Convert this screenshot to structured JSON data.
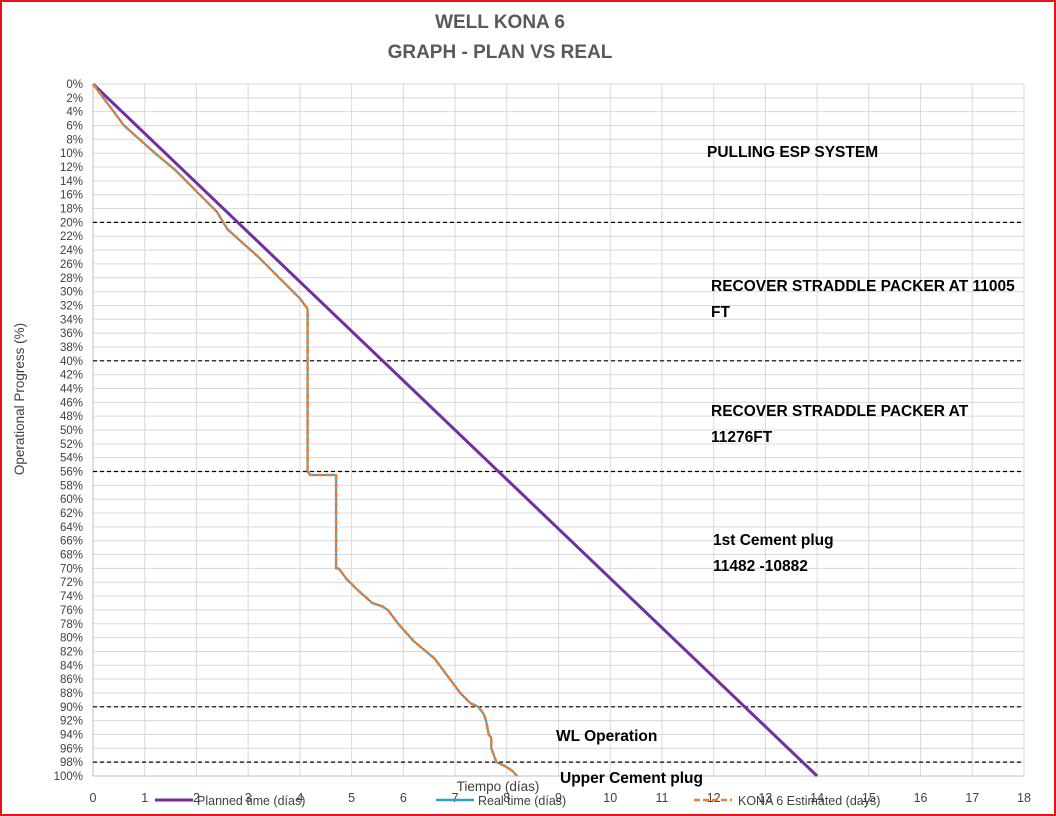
{
  "chart_data": {
    "type": "line",
    "title": "WELL KONA 6",
    "subtitle": "GRAPH  - PLAN VS REAL",
    "xlabel": "Tiempo (días)",
    "ylabel": "Operational Progress (%)",
    "xlim": [
      0,
      18
    ],
    "ylim": [
      0,
      100
    ],
    "y_inverted": true,
    "x_ticks": [
      "0",
      "1",
      "2",
      "3",
      "4",
      "5",
      "6",
      "7",
      "8",
      "9",
      "10",
      "11",
      "12",
      "13",
      "14",
      "15",
      "16",
      "17",
      "18"
    ],
    "y_ticks": [
      "0%",
      "2%",
      "4%",
      "6%",
      "8%",
      "10%",
      "12%",
      "14%",
      "16%",
      "18%",
      "20%",
      "22%",
      "24%",
      "26%",
      "28%",
      "30%",
      "32%",
      "34%",
      "36%",
      "38%",
      "40%",
      "42%",
      "44%",
      "46%",
      "48%",
      "50%",
      "52%",
      "54%",
      "56%",
      "58%",
      "60%",
      "62%",
      "64%",
      "66%",
      "68%",
      "70%",
      "72%",
      "74%",
      "76%",
      "78%",
      "80%",
      "82%",
      "84%",
      "86%",
      "88%",
      "90%",
      "92%",
      "94%",
      "96%",
      "98%",
      "100%"
    ],
    "grid": true,
    "legend_position": "bottom",
    "series": [
      {
        "name": "Planned time (días)",
        "color": "#7030a0",
        "style": "solid",
        "x": [
          0,
          14.0
        ],
        "y": [
          0,
          100
        ]
      },
      {
        "name": "Real time (días)",
        "color": "#31a0c8",
        "style": "solid",
        "x": [
          0,
          0.1,
          0.3,
          0.5,
          0.6,
          0.9,
          1.2,
          1.6,
          2.0,
          2.4,
          2.6,
          2.9,
          3.2,
          3.6,
          4.0,
          4.15,
          4.15,
          4.2,
          4.5,
          4.7,
          4.7,
          4.75,
          4.9,
          5.1,
          5.4,
          5.6,
          5.7,
          5.9,
          6.2,
          6.6,
          6.9,
          7.1,
          7.3,
          7.45,
          7.55,
          7.6,
          7.65,
          7.7,
          7.7,
          7.8,
          7.95,
          8.1,
          8.2
        ],
        "y": [
          0,
          1,
          3,
          5,
          6,
          8,
          10,
          12.5,
          15.5,
          18.5,
          21,
          23,
          25,
          28,
          31,
          32.5,
          56,
          56.5,
          56.5,
          56.5,
          70,
          70,
          71.5,
          73,
          75,
          75.5,
          76,
          78,
          80.5,
          83,
          86,
          88,
          89.5,
          90,
          91,
          92,
          94,
          94.5,
          96,
          98,
          98.5,
          99.2,
          100
        ]
      },
      {
        "name": "KONA 6 Estimated (days)",
        "color": "#ed7d31",
        "style": "dashed",
        "x": [
          0,
          0.1,
          0.3,
          0.5,
          0.6,
          0.9,
          1.2,
          1.6,
          2.0,
          2.4,
          2.6,
          2.9,
          3.2,
          3.6,
          4.0,
          4.15,
          4.15,
          4.2,
          4.5,
          4.7,
          4.7,
          4.75,
          4.9,
          5.1,
          5.4,
          5.6,
          5.7,
          5.9,
          6.2,
          6.6,
          6.9,
          7.1,
          7.3,
          7.45,
          7.55,
          7.6,
          7.65,
          7.7,
          7.7,
          7.8,
          7.95,
          8.1,
          8.2
        ],
        "y": [
          0,
          1,
          3,
          5,
          6,
          8,
          10,
          12.5,
          15.5,
          18.5,
          21,
          23,
          25,
          28,
          31,
          32.5,
          56,
          56.5,
          56.5,
          56.5,
          70,
          70,
          71.5,
          73,
          75,
          75.5,
          76,
          78,
          80.5,
          83,
          86,
          88,
          89.5,
          90,
          91,
          92,
          94,
          94.5,
          96,
          98,
          98.5,
          99.2,
          100
        ]
      }
    ],
    "phase_lines": [
      20,
      40,
      56,
      90,
      98
    ],
    "annotations": [
      {
        "lines": [
          "PULLING ESP SYSTEM"
        ]
      },
      {
        "lines": [
          "RECOVER STRADDLE PACKER AT 11005",
          "FT"
        ]
      },
      {
        "lines": [
          "RECOVER STRADDLE PACKER AT",
          "11276FT"
        ]
      },
      {
        "lines": [
          "1st Cement plug",
          "11482 -10882"
        ]
      },
      {
        "lines": [
          "WL Operation"
        ]
      },
      {
        "lines": [
          "Upper Cement plug"
        ]
      }
    ]
  }
}
